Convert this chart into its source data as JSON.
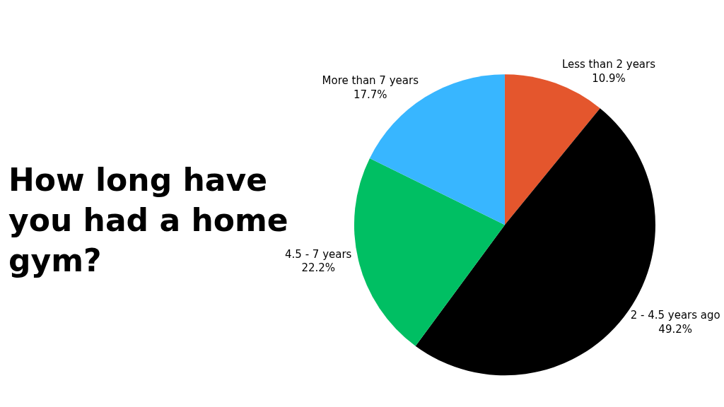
{
  "chart_data": {
    "type": "pie",
    "title": "How long have you had a home gym?",
    "categories": [
      "Less than 2 years",
      "2 - 4.5 years ago",
      "4.5 - 7 years",
      "More than 7 years"
    ],
    "values": [
      10.9,
      49.2,
      22.2,
      17.7
    ],
    "value_labels": [
      "10.9%",
      "49.2%",
      "22.2%",
      "17.7%"
    ],
    "colors": [
      "#e4562d",
      "#000000",
      "#00bf63",
      "#38b6ff"
    ],
    "legend": false
  }
}
